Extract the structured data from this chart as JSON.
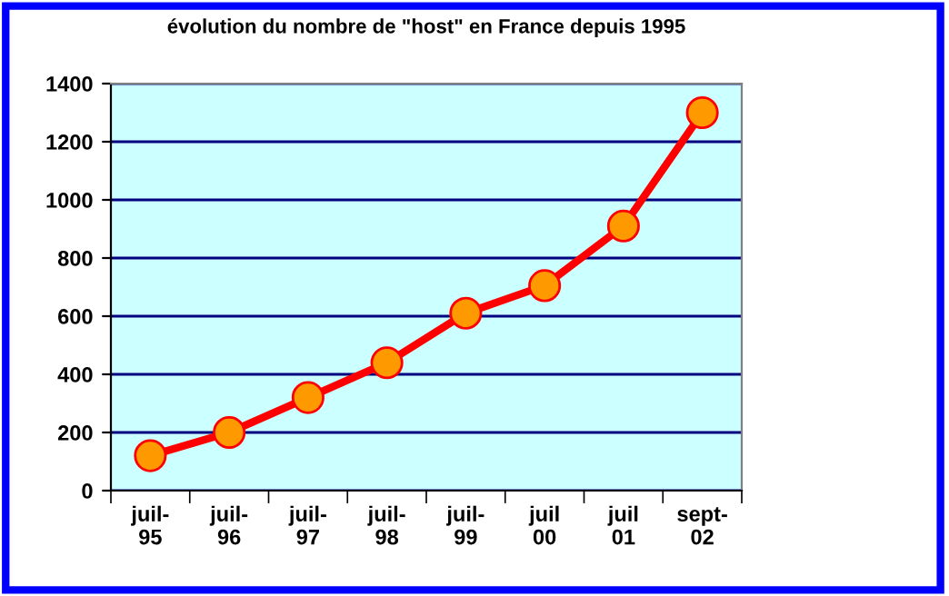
{
  "chart_data": {
    "type": "line",
    "title": "évolution du nombre de \"host\" en France depuis 1995",
    "categories": [
      "juil-\n95",
      "juil-\n96",
      "juil-\n97",
      "juil-\n98",
      "juil-\n99",
      "juil\n00",
      "juil\n01",
      "sept-\n02"
    ],
    "series": [
      {
        "color": "#ff0000",
        "values": [
          120,
          200,
          320,
          440,
          610,
          705,
          910,
          1300
        ]
      }
    ],
    "ylim": [
      0,
      1400
    ],
    "yticks": [
      0,
      200,
      400,
      600,
      800,
      1000,
      1200,
      1400
    ],
    "grid": "y",
    "marker": "circle",
    "line_style": "solid"
  }
}
